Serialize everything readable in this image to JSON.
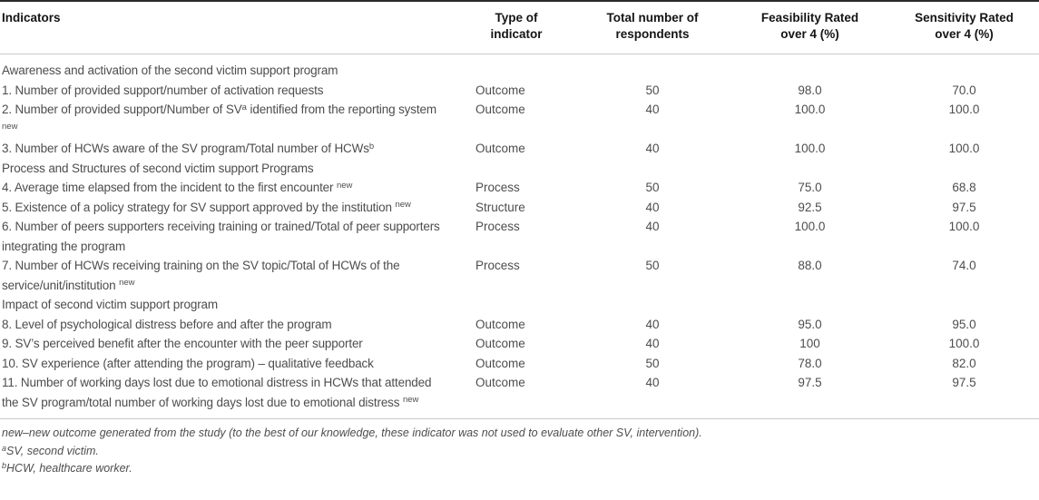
{
  "table": {
    "columns": [
      {
        "label": "Indicators"
      },
      {
        "label": "Type of\nindicator"
      },
      {
        "label": "Total number of\nrespondents"
      },
      {
        "label": "Feasibility Rated\nover 4 (%)"
      },
      {
        "label": "Sensitivity Rated\nover 4 (%)"
      }
    ],
    "rows": [
      {
        "kind": "section",
        "label": "Awareness and activation of the second victim support program"
      },
      {
        "kind": "data",
        "indicator": [
          {
            "t": "1. Number of provided support/number of activation requests"
          }
        ],
        "type": "Outcome",
        "respondents": "50",
        "feasibility": "98.0",
        "sensitivity": "70.0"
      },
      {
        "kind": "data",
        "indicator": [
          {
            "t": "2. Number of provided support/Number of SV"
          },
          {
            "sup": "a"
          },
          {
            "t": " identified from the reporting system "
          },
          {
            "sup": "new"
          }
        ],
        "type": "Outcome",
        "respondents": "40",
        "feasibility": "100.0",
        "sensitivity": "100.0"
      },
      {
        "kind": "data",
        "indicator": [
          {
            "t": "3. Number of HCWs aware of the SV program/Total number of HCWs"
          },
          {
            "sup": "b"
          }
        ],
        "type": "Outcome",
        "respondents": "40",
        "feasibility": "100.0",
        "sensitivity": "100.0"
      },
      {
        "kind": "section",
        "label": "Process and Structures of second victim support Programs"
      },
      {
        "kind": "data",
        "indicator": [
          {
            "t": "4. Average time elapsed from the incident to the first encounter "
          },
          {
            "sup": "new"
          }
        ],
        "type": "Process",
        "respondents": "50",
        "feasibility": "75.0",
        "sensitivity": "68.8"
      },
      {
        "kind": "data",
        "indicator": [
          {
            "t": "5. Existence of a policy strategy for SV support approved by the institution "
          },
          {
            "sup": "new"
          }
        ],
        "type": "Structure",
        "respondents": "40",
        "feasibility": "92.5",
        "sensitivity": "97.5"
      },
      {
        "kind": "data",
        "indicator": [
          {
            "t": "6. Number of peers supporters receiving training or trained/Total of peer supporters integrating the program"
          }
        ],
        "type": "Process",
        "respondents": "40",
        "feasibility": "100.0",
        "sensitivity": "100.0"
      },
      {
        "kind": "data",
        "indicator": [
          {
            "t": "7. Number of HCWs receiving training on the SV topic/Total of HCWs of the service/unit/institution "
          },
          {
            "sup": "new"
          }
        ],
        "type": "Process",
        "respondents": "50",
        "feasibility": "88.0",
        "sensitivity": "74.0"
      },
      {
        "kind": "section",
        "label": "Impact of second victim support program"
      },
      {
        "kind": "data",
        "indicator": [
          {
            "t": "8. Level of psychological distress before and after the program"
          }
        ],
        "type": "Outcome",
        "respondents": "40",
        "feasibility": "95.0",
        "sensitivity": "95.0"
      },
      {
        "kind": "data",
        "indicator": [
          {
            "t": "9. SV’s perceived benefit after the encounter with the peer supporter"
          }
        ],
        "type": "Outcome",
        "respondents": "40",
        "feasibility": "100",
        "sensitivity": "100.0"
      },
      {
        "kind": "data",
        "indicator": [
          {
            "t": "10. SV experience (after attending the program) – qualitative feedback"
          }
        ],
        "type": "Outcome",
        "respondents": "50",
        "feasibility": "78.0",
        "sensitivity": "82.0"
      },
      {
        "kind": "data",
        "indicator": [
          {
            "t": "11. Number of working days lost due to emotional distress in HCWs that attended the SV program/total number of working days lost due to emotional distress "
          },
          {
            "sup": "new"
          }
        ],
        "type": "Outcome",
        "respondents": "40",
        "feasibility": "97.5",
        "sensitivity": "97.5"
      }
    ],
    "footnotes": [
      {
        "segments": [
          {
            "t": "new–new outcome generated from the study (to the best of our knowledge, these indicator was not used to evaluate other SV, intervention)."
          }
        ]
      },
      {
        "segments": [
          {
            "sup": "a"
          },
          {
            "t": "SV, second victim."
          }
        ]
      },
      {
        "segments": [
          {
            "sup": "b"
          },
          {
            "t": "HCW, healthcare worker."
          }
        ]
      }
    ],
    "colors": {
      "top_rule": "#2a2a2a",
      "divider_rule": "#c9c9c9",
      "header_text": "#141414",
      "body_text": "#4d4d4d"
    }
  }
}
